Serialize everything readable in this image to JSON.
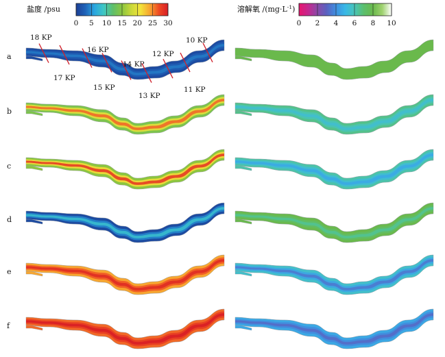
{
  "chart_data": {
    "type": "heatmap",
    "description_panels": [
      "a",
      "b",
      "c",
      "d",
      "e",
      "f"
    ],
    "salinity": {
      "title": "盐度 /psu",
      "ticks": [
        "0",
        "5",
        "10",
        "15",
        "20",
        "25",
        "30"
      ],
      "range": [
        0,
        30
      ],
      "colors": [
        "#1c3f95",
        "#1f63b8",
        "#2aa6e0",
        "#3fc7c4",
        "#5fbf6a",
        "#8cc63f",
        "#c9d83a",
        "#f2e43b",
        "#f7a630",
        "#ee4a23",
        "#d81f26"
      ]
    },
    "dissolved_oxygen": {
      "title": "溶解氧 /(mg·L",
      "title_sup": "-1",
      "title_end": ")",
      "ticks": [
        "0",
        "2",
        "4",
        "6",
        "8",
        "10"
      ],
      "range": [
        0,
        10
      ],
      "colors": [
        "#e8156d",
        "#c4288f",
        "#8a4aa8",
        "#5a62c0",
        "#3f8fe0",
        "#39b8e6",
        "#48c4b8",
        "#5cbf6d",
        "#6ab94d",
        "#9fd26f",
        "#ffffff"
      ]
    },
    "sections": [
      "18 KP",
      "17 KP",
      "16 KP",
      "15 KP",
      "14 KP",
      "13 KP",
      "12 KP",
      "11 KP",
      "10 KP"
    ],
    "panels": [
      {
        "label": "a",
        "salinity_base": 1,
        "salinity_core": 4,
        "do_base": 8,
        "do_core": 8
      },
      {
        "label": "b",
        "salinity_base": 14,
        "salinity_core": 26,
        "do_base": 6.6,
        "do_core": 5.5
      },
      {
        "label": "c",
        "salinity_base": 15,
        "salinity_core": 28,
        "do_base": 6.2,
        "do_core": 4.6
      },
      {
        "label": "d",
        "salinity_base": 1,
        "salinity_core": 8,
        "do_base": 8,
        "do_core": 6.5
      },
      {
        "label": "e",
        "salinity_base": 24,
        "salinity_core": 29,
        "do_base": 5.6,
        "do_core": 3.5
      },
      {
        "label": "f",
        "salinity_base": 26,
        "salinity_core": 30,
        "do_base": 4.6,
        "do_core": 3.2
      }
    ]
  }
}
